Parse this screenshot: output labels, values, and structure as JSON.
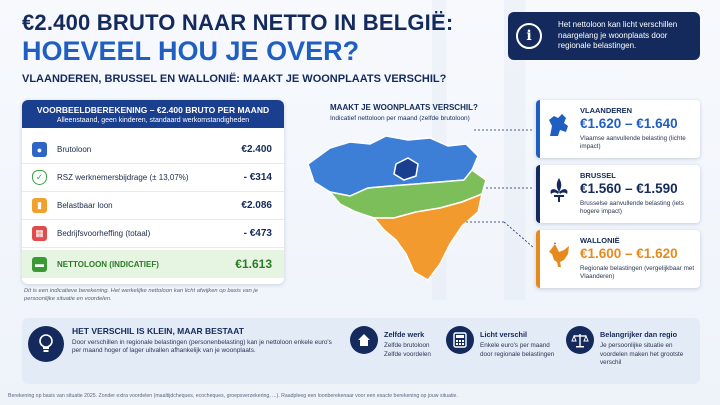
{
  "header": {
    "title_line1": "€2.400 BRUTO NAAR NETTO IN BELGIË:",
    "title_line2": "HOEVEEL HOU JE OVER?",
    "subtitle": "VLAANDEREN, BRUSSEL EN WALLONIË: MAAKT JE WOONPLAATS VERSCHIL?"
  },
  "info_box": {
    "icon": "info-icon",
    "text": "Het nettoloon kan licht verschillen naargelang je woonplaats door regionale belastingen."
  },
  "calculation": {
    "title": "VOORBEELDBEREKENING – €2.400 BRUTO PER MAAND",
    "subtitle": "Alleenstaand, geen kinderen, standaard werkomstandigheden",
    "rows": [
      {
        "icon": "people-icon",
        "label": "Brutoloon",
        "value": "€2.400"
      },
      {
        "icon": "shield-icon",
        "label": "RSZ werknemersbijdrage (± 13,07%)",
        "value": "- €314"
      },
      {
        "icon": "bar-chart-icon",
        "label": "Belastbaar loon",
        "value": "€2.086"
      },
      {
        "icon": "calculator-icon",
        "label": "Bedrijfsvoorheffing (totaal)",
        "value": "- €473"
      },
      {
        "icon": "wallet-icon",
        "label": "NETTOLOON (INDICATIEF)",
        "value": "€1.613"
      }
    ],
    "note": "Dit is een indicatieve berekening. Het werkelijke nettoloon kan licht afwijken op basis van je persoonlijke situatie en voordelen."
  },
  "map": {
    "title": "MAAKT JE WOONPLAATS VERSCHIL?",
    "subtitle": "Indicatief nettoloon per maand (zelfde brutoloon)",
    "colors": {
      "flanders": "#3d7ed6",
      "brussels": "#1b3f8f",
      "wallonia_north": "#7cbf5a",
      "wallonia_south": "#f29a2e"
    }
  },
  "regions": [
    {
      "name": "VLAANDEREN",
      "amount": "€1.620 – €1.640",
      "desc": "Vlaamse aanvullende belasting (lichte impact)",
      "color": "#1f5fc2",
      "emblem": "lion-icon"
    },
    {
      "name": "BRUSSEL",
      "amount": "€1.560 – €1.590",
      "desc": "Brusselse aanvullende belasting (iets hogere impact)",
      "color": "#142a5c",
      "emblem": "fleur-de-lis-icon"
    },
    {
      "name": "WALLONIË",
      "amount": "€1.600 – €1.620",
      "desc": "Regionale belastingen (vergelijkbaar met Vlaanderen)",
      "color": "#e58a1f",
      "emblem": "rooster-icon"
    }
  ],
  "bottom": {
    "heading": "HET VERSCHIL IS KLEIN, MAAR BESTAAT",
    "text": "Door verschillen in regionale belastingen (personenbelasting) kan je nettoloon enkele euro's per maand hoger of lager uitvallen afhankelijk van je woonplaats.",
    "features": [
      {
        "icon": "house-icon",
        "title": "Zelfde werk",
        "text": "Zelfde brutoloon Zelfde voordelen"
      },
      {
        "icon": "calculator-icon",
        "title": "Licht verschil",
        "text": "Enkele euro's per maand door regionale belastingen"
      },
      {
        "icon": "scales-icon",
        "title": "Belangrijker dan regio",
        "text": "Je persoonlijke situatie en voordelen maken het grootste verschil"
      }
    ]
  },
  "footer": "Berekening op basis van situatie 2025. Zonder extra voordelen (maaltijdcheques, ecocheques, groepsverzekering, ...). Raadpleeg een loonberekenaar voor een exacte berekening op jouw situatie."
}
